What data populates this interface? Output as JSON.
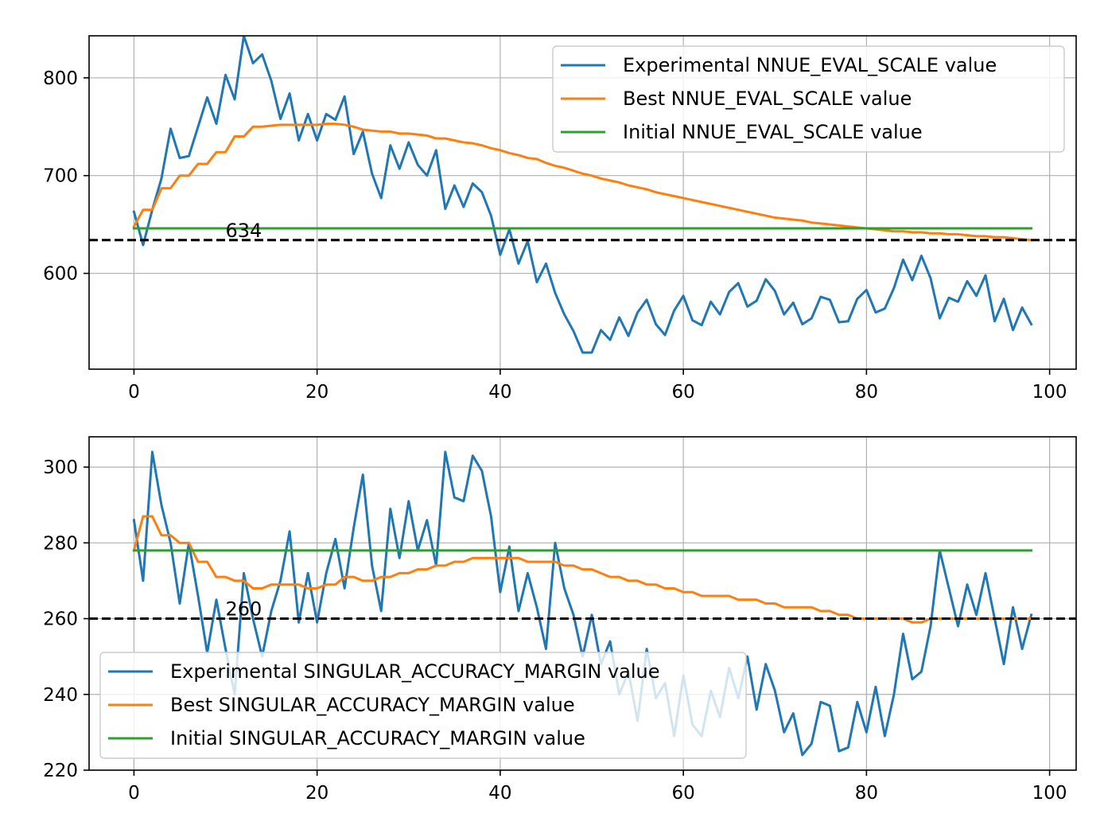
{
  "chart_data": [
    {
      "type": "line",
      "title": "",
      "xlabel": "",
      "ylabel": "",
      "xlim": [
        -4.9,
        102.9
      ],
      "ylim": [
        502,
        843
      ],
      "xticks": [
        0,
        20,
        40,
        60,
        80,
        100
      ],
      "xtick_labels": [
        "0",
        "20",
        "40",
        "60",
        "80",
        "100"
      ],
      "yticks": [
        600,
        700,
        800
      ],
      "ytick_labels": [
        "600",
        "700",
        "800"
      ],
      "grid": true,
      "legend_position": "upper-right",
      "series": [
        {
          "name": "Experimental NNUE_EVAL_SCALE value",
          "color": "#1f77b4",
          "values": [
            663,
            629,
            665,
            697,
            748,
            718,
            720,
            750,
            780,
            753,
            803,
            778,
            843,
            815,
            824,
            797,
            758,
            784,
            736,
            763,
            736,
            763,
            757,
            781,
            722,
            745,
            702,
            677,
            731,
            707,
            734,
            711,
            700,
            726,
            666,
            690,
            668,
            692,
            683,
            659,
            619,
            645,
            610,
            633,
            591,
            610,
            580,
            558,
            541,
            519,
            519,
            542,
            532,
            555,
            536,
            560,
            573,
            548,
            537,
            562,
            577,
            552,
            547,
            571,
            558,
            581,
            590,
            566,
            572,
            594,
            582,
            558,
            570,
            548,
            554,
            576,
            573,
            550,
            551,
            574,
            583,
            560,
            564,
            585,
            614,
            593,
            618,
            595,
            554,
            575,
            571,
            592,
            577,
            598,
            551,
            574,
            542,
            565,
            548
          ]
        },
        {
          "name": "Best NNUE_EVAL_SCALE value",
          "color": "#ff7f0e",
          "values": [
            648,
            665,
            665,
            687,
            687,
            700,
            700,
            712,
            712,
            724,
            724,
            740,
            740,
            750,
            750,
            751,
            752,
            752,
            752,
            752,
            752,
            753,
            753,
            752,
            750,
            747,
            746,
            745,
            745,
            743,
            743,
            742,
            741,
            738,
            738,
            736,
            734,
            733,
            731,
            728,
            726,
            723,
            721,
            718,
            717,
            713,
            710,
            708,
            705,
            702,
            700,
            697,
            695,
            693,
            690,
            688,
            686,
            683,
            681,
            679,
            677,
            675,
            673,
            671,
            669,
            667,
            665,
            663,
            661,
            659,
            657,
            656,
            655,
            654,
            652,
            651,
            650,
            649,
            648,
            647,
            646,
            645,
            644,
            643,
            643,
            642,
            642,
            641,
            641,
            640,
            640,
            639,
            638,
            638,
            637,
            637,
            636,
            635,
            634
          ]
        },
        {
          "name": "Initial NNUE_EVAL_SCALE value",
          "color": "#2ca02c",
          "values": [
            646,
            646
          ]
        }
      ],
      "hline": {
        "y": 634,
        "label": "634"
      }
    },
    {
      "type": "line",
      "title": "",
      "xlabel": "",
      "ylabel": "",
      "xlim": [
        -4.9,
        102.9
      ],
      "ylim": [
        220,
        308
      ],
      "xticks": [
        0,
        20,
        40,
        60,
        80,
        100
      ],
      "xtick_labels": [
        "0",
        "20",
        "40",
        "60",
        "80",
        "100"
      ],
      "yticks": [
        220,
        240,
        260,
        280,
        300
      ],
      "ytick_labels": [
        "220",
        "240",
        "260",
        "280",
        "300"
      ],
      "grid": true,
      "legend_position": "lower-left",
      "series": [
        {
          "name": "Experimental SINGULAR_ACCURACY_MARGIN value",
          "color": "#1f77b4",
          "values": [
            286,
            270,
            304,
            290,
            280,
            264,
            280,
            266,
            251,
            265,
            252,
            240,
            272,
            260,
            250,
            262,
            270,
            283,
            259,
            272,
            259,
            272,
            281,
            268,
            284,
            298,
            274,
            262,
            289,
            276,
            291,
            278,
            286,
            274,
            304,
            292,
            291,
            303,
            299,
            287,
            267,
            279,
            262,
            272,
            263,
            252,
            280,
            268,
            261,
            250,
            261,
            248,
            254,
            240,
            246,
            233,
            252,
            239,
            243,
            229,
            245,
            232,
            229,
            241,
            234,
            247,
            239,
            250,
            236,
            248,
            241,
            230,
            235,
            224,
            227,
            238,
            237,
            225,
            226,
            238,
            230,
            242,
            229,
            240,
            256,
            244,
            246,
            258,
            278,
            268,
            258,
            269,
            261,
            272,
            260,
            248,
            263,
            252,
            261
          ]
        },
        {
          "name": "Best SINGULAR_ACCURACY_MARGIN value",
          "color": "#ff7f0e",
          "values": [
            278,
            287,
            287,
            282,
            282,
            280,
            280,
            275,
            275,
            271,
            271,
            270,
            270,
            268,
            268,
            269,
            269,
            269,
            269,
            268,
            268,
            269,
            269,
            271,
            271,
            270,
            270,
            271,
            271,
            272,
            272,
            273,
            273,
            274,
            274,
            275,
            275,
            276,
            276,
            276,
            276,
            276,
            276,
            275,
            275,
            275,
            275,
            274,
            274,
            273,
            273,
            272,
            271,
            271,
            270,
            270,
            269,
            269,
            268,
            268,
            267,
            267,
            266,
            266,
            266,
            266,
            265,
            265,
            265,
            264,
            264,
            263,
            263,
            263,
            263,
            262,
            262,
            261,
            261,
            260,
            260,
            260,
            260,
            260,
            260,
            259,
            259,
            260,
            260,
            260,
            260,
            260,
            260,
            260,
            260,
            260,
            260,
            260,
            260
          ]
        },
        {
          "name": "Initial SINGULAR_ACCURACY_MARGIN value",
          "color": "#2ca02c",
          "values": [
            278,
            278
          ]
        }
      ],
      "hline": {
        "y": 260,
        "label": "260"
      }
    }
  ]
}
